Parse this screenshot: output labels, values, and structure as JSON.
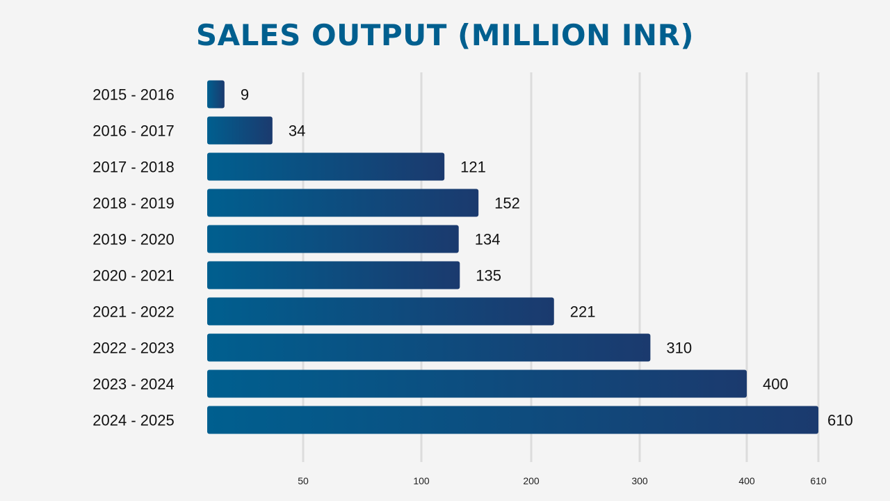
{
  "chart_data": {
    "type": "bar",
    "orientation": "horizontal",
    "title": "SALES OUTPUT (MILLION INR)",
    "categories": [
      "2015 - 2016",
      "2016 - 2017",
      "2017 - 2018",
      "2018 - 2019",
      "2019 - 2020",
      "2020 - 2021",
      "2021 - 2022",
      "2022 - 2023",
      "2023 - 2024",
      "2024 - 2025"
    ],
    "values": [
      9,
      34,
      121,
      152,
      134,
      135,
      221,
      310,
      400,
      610
    ],
    "value_labels": [
      "9",
      "34",
      "121",
      "152",
      "134",
      "135",
      "221",
      "310",
      "400",
      "610"
    ],
    "x_ticks": [
      50,
      100,
      200,
      300,
      400,
      610
    ],
    "x_tick_labels": [
      "50",
      "100",
      "200",
      "300",
      "400",
      "610"
    ],
    "xlabel": "",
    "ylabel": "",
    "grid": true,
    "legend": "none",
    "colors": {
      "title": "#005f8f",
      "bar_start": "#005f8f",
      "bar_end": "#1b3a6e",
      "grid": "#dcdcdc",
      "background": "#f4f4f4",
      "text": "#111111"
    }
  }
}
